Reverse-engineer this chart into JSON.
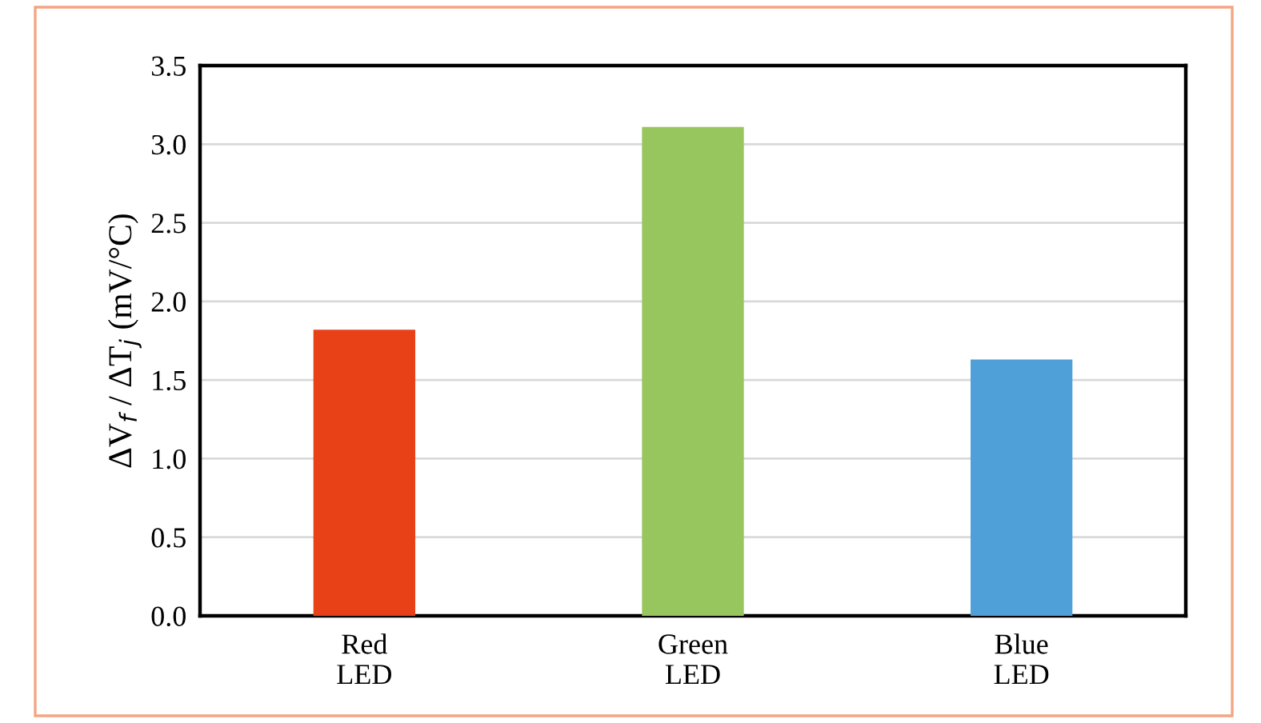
{
  "chart_data": {
    "type": "bar",
    "ylabel": "ΔV$_{f}$ / ΔT$_{j}$ (mV/°C)",
    "categories": [
      "Red\nLED",
      "Green\nLED",
      "Blue\nLED"
    ],
    "values": [
      1.82,
      3.11,
      1.63
    ],
    "colors": [
      "#e84118",
      "#97c55e",
      "#4f9fd8"
    ],
    "ylim": [
      0,
      3.5
    ],
    "yticks": [
      {
        "value": 0,
        "label": "0.0"
      },
      0.5,
      {
        "value": 1,
        "label": "1.0"
      },
      1.5,
      {
        "value": 2,
        "label": "2.0"
      },
      2.5,
      {
        "value": 3,
        "label": "3.0"
      },
      3.5
    ],
    "grid": "y",
    "legend": false
  }
}
